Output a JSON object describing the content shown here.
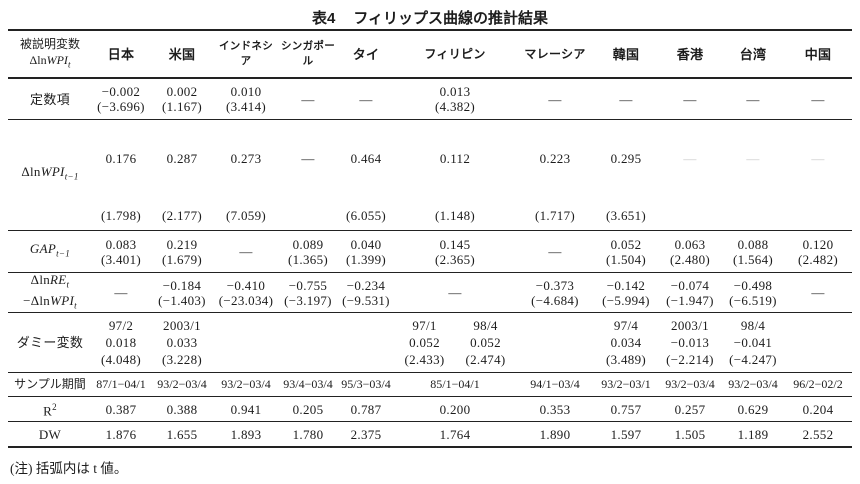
{
  "title": {
    "no": "表4",
    "text": "フィリップス曲線の推計結果"
  },
  "note": "(注) 括弧内は t 値。",
  "header": {
    "dep1": "被説明変数",
    "dep2": {
      "pre": "Δln",
      "it": "WPI",
      "sub": "t"
    },
    "countries": [
      "日本",
      "米国",
      "インドネシア",
      "シンガポール",
      "タイ",
      "フィリピン",
      "マレーシア",
      "韓国",
      "香港",
      "台湾",
      "中国"
    ]
  },
  "rows": {
    "const": {
      "label": "定数項",
      "cells": [
        {
          "coef": "−0.002",
          "t": "(−3.696)"
        },
        {
          "coef": "0.002",
          "t": "(1.167)"
        },
        {
          "coef": "0.010",
          "t": "(3.414)"
        },
        {
          "dash": "—"
        },
        {
          "dash": "—"
        },
        {
          "coef": "0.013",
          "t": "(4.382)"
        },
        {
          "dash": "—"
        },
        {
          "dash": "—"
        },
        {
          "dash": "—"
        },
        {
          "dash": "—"
        },
        {
          "dash": "—"
        }
      ]
    },
    "wpi": {
      "label": {
        "pre": "Δln",
        "it": "WPI",
        "sub": "t−1"
      },
      "cells": [
        {
          "coef": "0.176",
          "t": "(1.798)"
        },
        {
          "coef": "0.287",
          "t": "(2.177)"
        },
        {
          "coef": "0.273",
          "t": "(7.059)"
        },
        {
          "dash": "—"
        },
        {
          "coef": "0.464",
          "t": "(6.055)"
        },
        {
          "coef": "0.112",
          "t": "(1.148)"
        },
        {
          "coef": "0.223",
          "t": "(1.717)"
        },
        {
          "coef": "0.295",
          "t": "(3.651)"
        },
        {
          "dash": "—"
        },
        {
          "dash": "—"
        },
        {
          "dash": "—"
        }
      ]
    },
    "gap": {
      "label": {
        "it": "GAP",
        "sub": "t−1"
      },
      "cells": [
        {
          "coef": "0.083",
          "t": "(3.401)"
        },
        {
          "coef": "0.219",
          "t": "(1.679)"
        },
        {
          "dash": "—"
        },
        {
          "coef": "0.089",
          "t": "(1.365)"
        },
        {
          "coef": "0.040",
          "t": "(1.399)"
        },
        {
          "coef": "0.145",
          "t": "(2.365)"
        },
        {
          "dash": "—"
        },
        {
          "coef": "0.052",
          "t": "(1.504)"
        },
        {
          "coef": "0.063",
          "t": "(2.480)"
        },
        {
          "coef": "0.088",
          "t": "(1.564)"
        },
        {
          "coef": "0.120",
          "t": "(2.482)"
        }
      ]
    },
    "re": {
      "label1": {
        "pre": "Δln",
        "it": "RE",
        "sub": "t"
      },
      "label2": {
        "pre": "−Δln",
        "it": "WPI",
        "sub": "t"
      },
      "cells": [
        {
          "dash": "—"
        },
        {
          "coef": "−0.184",
          "t": "(−1.403)"
        },
        {
          "coef": "−0.410",
          "t": "(−23.034)"
        },
        {
          "coef": "−0.755",
          "t": "(−3.197)"
        },
        {
          "coef": "−0.234",
          "t": "(−9.531)"
        },
        {
          "dash": "—"
        },
        {
          "coef": "−0.373",
          "t": "(−4.684)"
        },
        {
          "coef": "−0.142",
          "t": "(−5.994)"
        },
        {
          "coef": "−0.074",
          "t": "(−1.947)"
        },
        {
          "coef": "−0.498",
          "t": "(−6.519)"
        },
        {
          "dash": "—"
        }
      ]
    },
    "dummy": {
      "label": "ダミー変数",
      "cells": [
        {
          "date": "97/2",
          "coef": "0.018",
          "t": "(4.048)"
        },
        {
          "date": "2003/1",
          "coef": "0.033",
          "t": "(3.228)"
        },
        {},
        {},
        {},
        {
          "a": {
            "date": "97/1",
            "coef": "0.052",
            "t": "(2.433)"
          },
          "b": {
            "date": "98/4",
            "coef": "0.052",
            "t": "(2.474)"
          }
        },
        {},
        {
          "date": "97/4",
          "coef": "0.034",
          "t": "(3.489)"
        },
        {
          "date": "2003/1",
          "coef": "−0.013",
          "t": "(−2.214)"
        },
        {
          "date": "98/4",
          "coef": "−0.041",
          "t": "(−4.247)"
        },
        {}
      ]
    },
    "sample": {
      "label": "サンプル期間",
      "values": [
        "87/1−04/1",
        "93/2−03/4",
        "93/2−03/4",
        "93/4−03/4",
        "95/3−03/4",
        "85/1−04/1",
        "94/1−03/4",
        "93/2−03/1",
        "93/2−03/4",
        "93/2−03/4",
        "96/2−02/2"
      ]
    },
    "r2": {
      "label": {
        "base": "R",
        "sup": "2"
      },
      "values": [
        "0.387",
        "0.388",
        "0.941",
        "0.205",
        "0.787",
        "0.200",
        "0.353",
        "0.757",
        "0.257",
        "0.629",
        "0.204"
      ]
    },
    "dw": {
      "label": "DW",
      "values": [
        "1.876",
        "1.655",
        "1.893",
        "1.780",
        "2.375",
        "1.764",
        "1.890",
        "1.597",
        "1.505",
        "1.189",
        "2.552"
      ]
    }
  }
}
